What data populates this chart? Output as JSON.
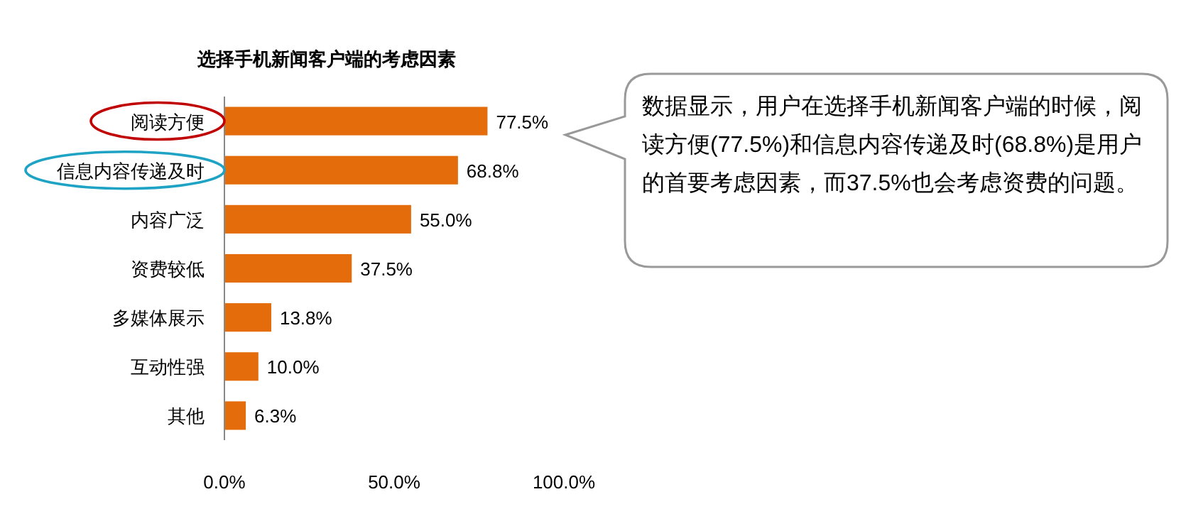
{
  "chart_data": {
    "type": "bar",
    "orientation": "horizontal",
    "title": "选择手机新闻客户端的考虑因素",
    "categories": [
      "阅读方便",
      "信息内容传递及时",
      "内容广泛",
      "资费较低",
      "多媒体展示",
      "互动性强",
      "其他"
    ],
    "values": [
      77.5,
      68.8,
      55.0,
      37.5,
      13.8,
      10.0,
      6.3
    ],
    "color": "#e46c0a",
    "value_labels": [
      "77.5%",
      "68.8%",
      "55.0%",
      "37.5%",
      "13.8%",
      "10.0%",
      "6.3%"
    ],
    "xlim": [
      0,
      100
    ],
    "xticks": [
      {
        "value": 0,
        "label": "0.0%"
      },
      {
        "value": 50,
        "label": "50.0%"
      },
      {
        "value": 100,
        "label": "100.0%"
      }
    ],
    "grid": false,
    "annotations": [
      "数据显示，用户在选择手机新闻客户端的时候，阅读方便(77.5%)和信息内容传递及时(68.8%)是用户的首要考虑因素，而37.5%也会考虑资费的问题。"
    ]
  }
}
